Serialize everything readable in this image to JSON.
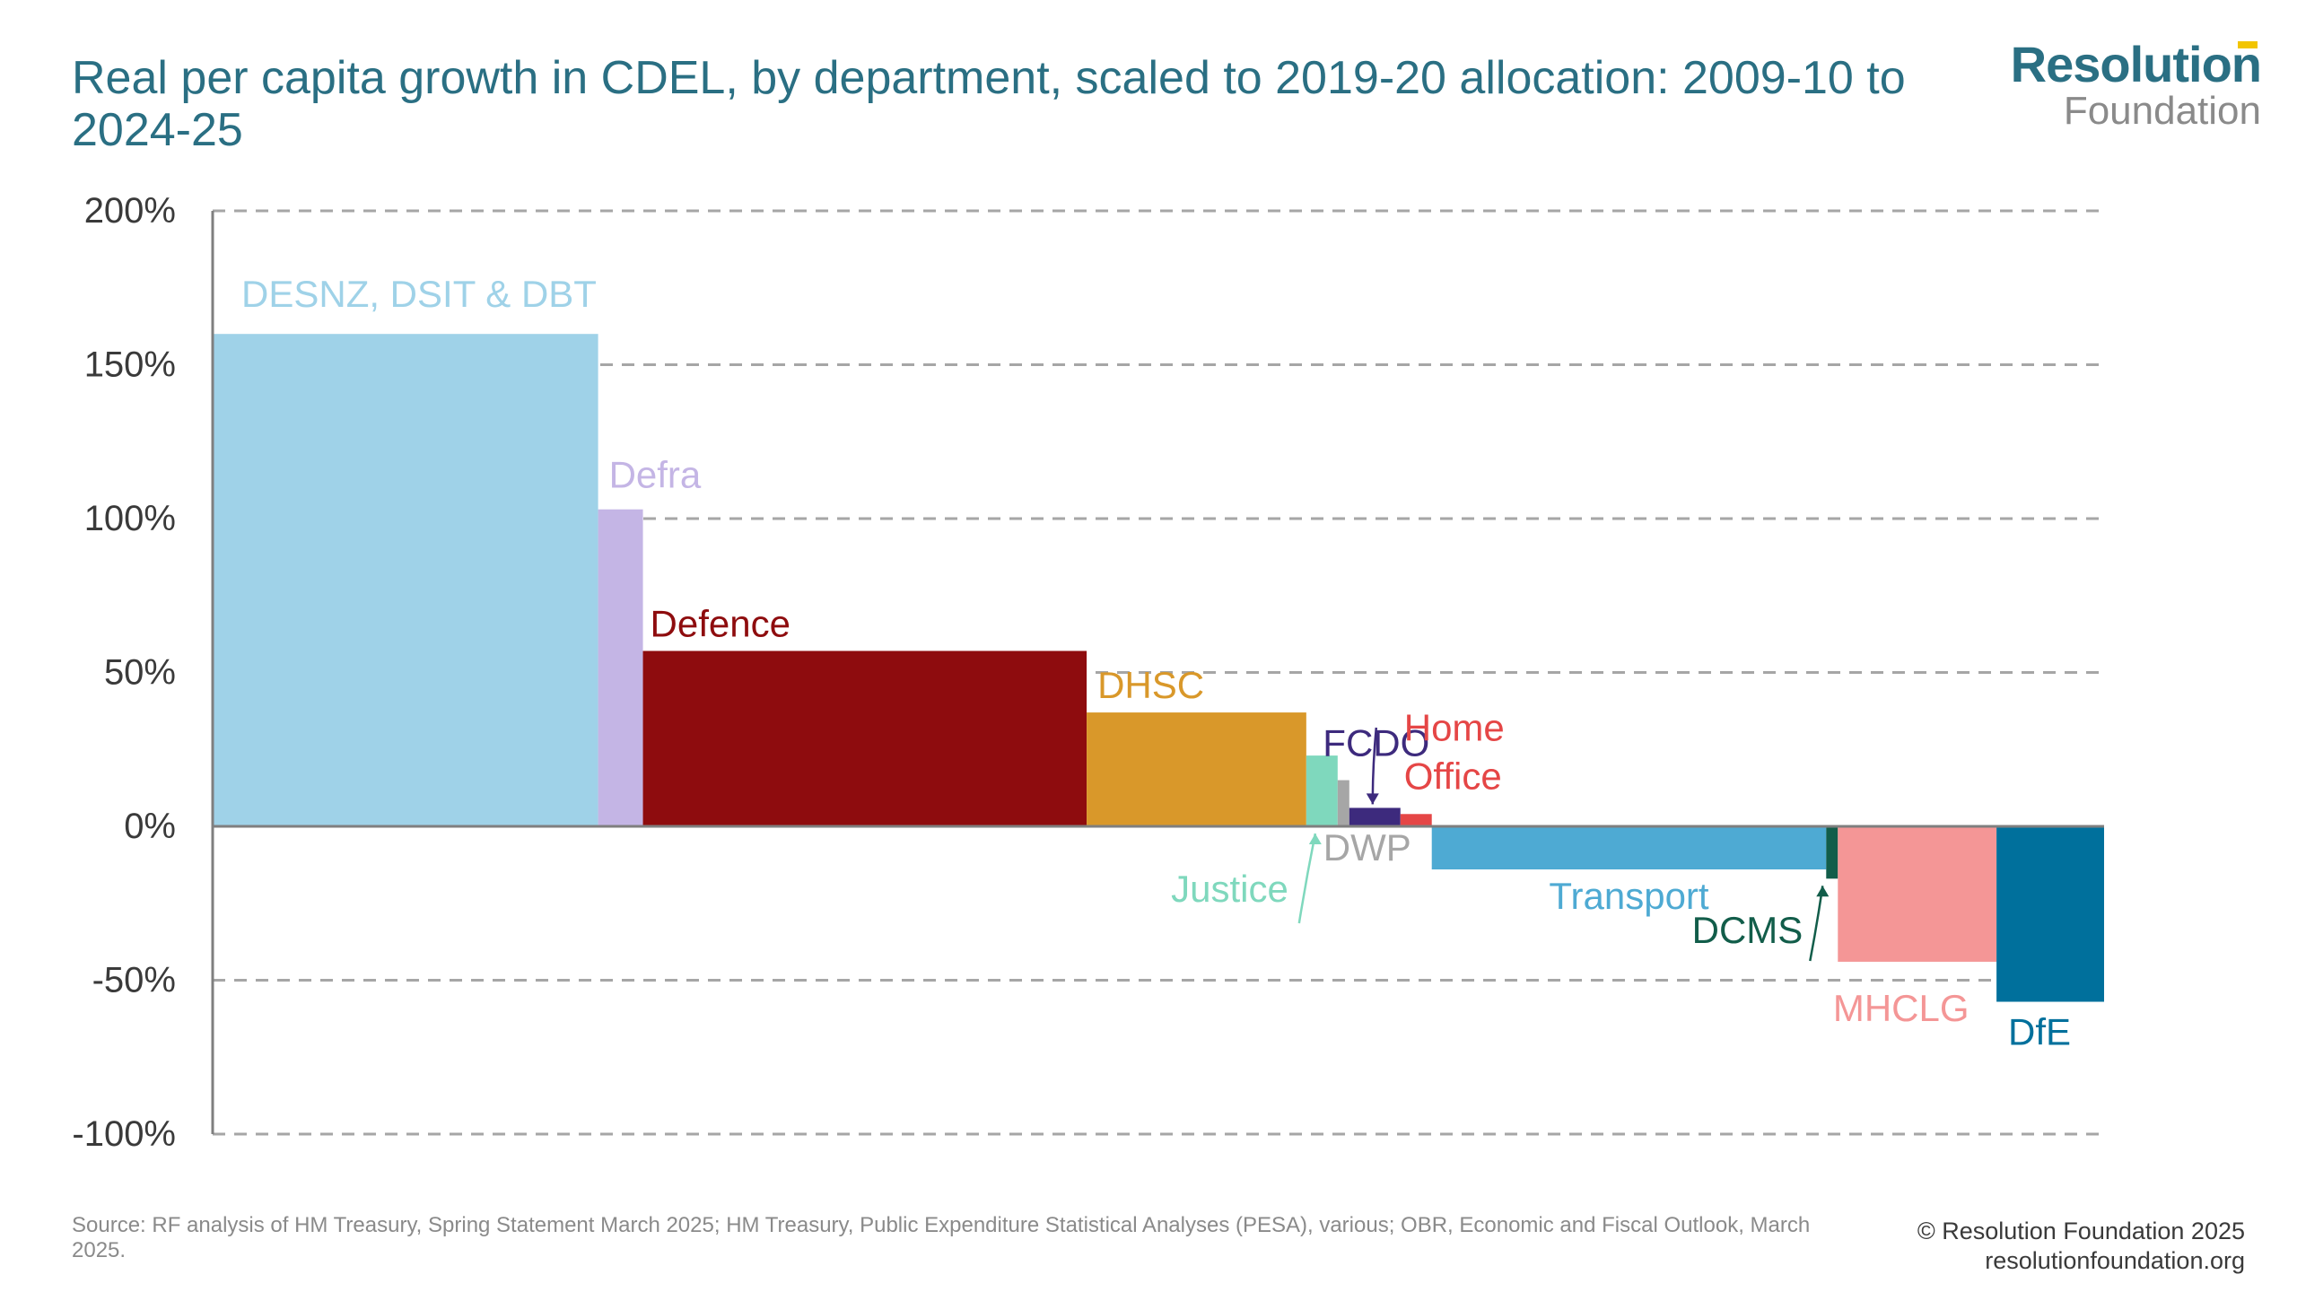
{
  "title": "Real per capita growth in CDEL, by department, scaled to 2019-20 allocation: 2009-10 to 2024-25",
  "logo": {
    "line1": "Resolution",
    "line2": "Foundation"
  },
  "source": "Source: RF analysis of HM Treasury, Spring Statement March 2025; HM Treasury, Public Expenditure Statistical Analyses (PESA), various; OBR, Economic and Fiscal Outlook, March 2025.",
  "credit": {
    "line1": "© Resolution Foundation 2025",
    "line2": "resolutionfoundation.org"
  },
  "chart_data": {
    "type": "bar",
    "variable_width": true,
    "ylim": [
      -100,
      200
    ],
    "yticks": [
      200,
      150,
      100,
      50,
      0,
      -50,
      -100
    ],
    "ytick_labels": [
      "200%",
      "150%",
      "100%",
      "50%",
      "0%",
      "-50%",
      "-100%"
    ],
    "grid": "dashed horizontal",
    "series": [
      {
        "name": "DESNZ, DSIT & DBT",
        "value": 160,
        "width": 43.0,
        "color": "#9fd2e8"
      },
      {
        "name": "Defra",
        "value": 103,
        "width": 5.0,
        "color": "#c4b5e5"
      },
      {
        "name": "Defence",
        "value": 57,
        "width": 49.5,
        "color": "#8e0c0e"
      },
      {
        "name": "DHSC",
        "value": 37,
        "width": 24.5,
        "color": "#d9982a"
      },
      {
        "name": "Justice",
        "value": 23,
        "width": 3.5,
        "color": "#7fd8bd"
      },
      {
        "name": "DWP",
        "value": 15,
        "width": 1.3,
        "color": "#a6a6a6"
      },
      {
        "name": "FCDO",
        "value": 6,
        "width": 5.7,
        "color": "#3d2a7d"
      },
      {
        "name": "Home Office",
        "value": 4,
        "width": 3.5,
        "color": "#e54646"
      },
      {
        "name": "Transport",
        "value": -14,
        "width": 44.0,
        "color": "#4eaad3"
      },
      {
        "name": "DCMS",
        "value": -17,
        "width": 1.3,
        "color": "#125d4a"
      },
      {
        "name": "MHCLG",
        "value": -44,
        "width": 17.7,
        "color": "#f49696"
      },
      {
        "name": "DfE",
        "value": -57,
        "width": 12.0,
        "color": "#00709c"
      }
    ]
  }
}
